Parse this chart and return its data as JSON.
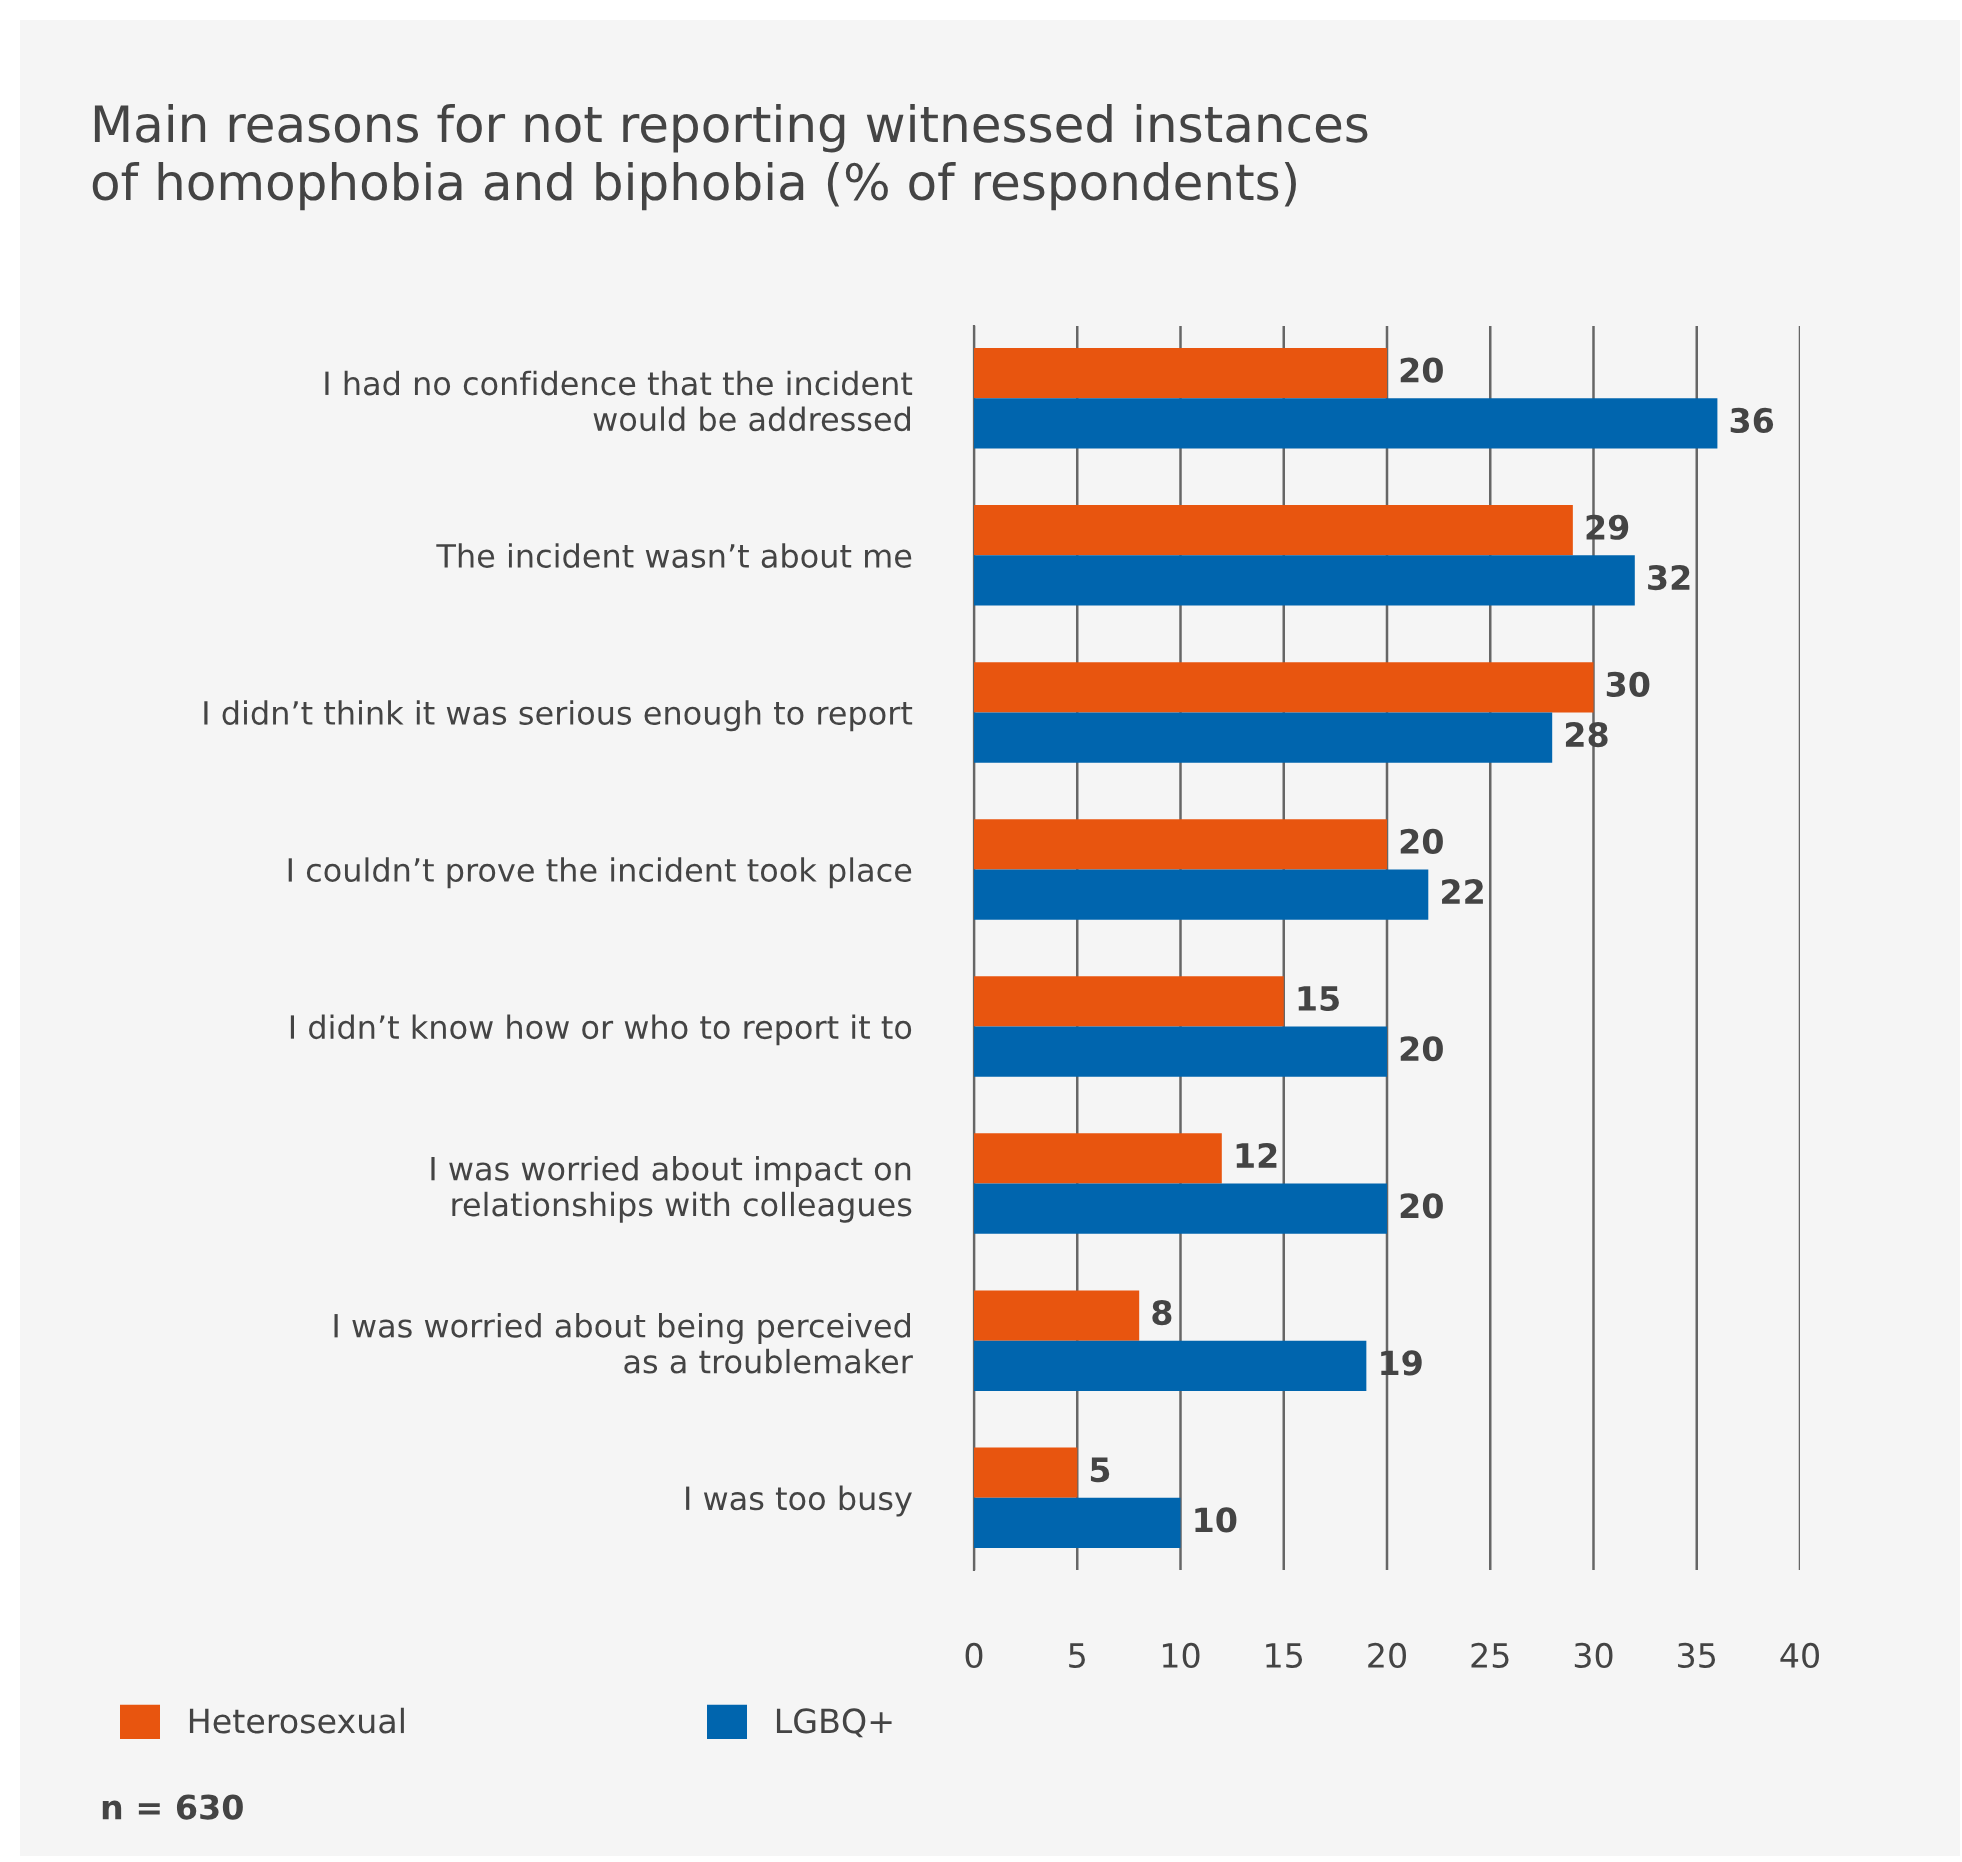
{
  "chart_data": {
    "type": "bar",
    "orientation": "horizontal",
    "title": "Main reasons for not reporting witnessed instances\nof homophobia and biphobia (% of respondents)",
    "categories": [
      "I had no confidence that the incident\nwould be addressed",
      "The incident wasn’t about me",
      "I didn’t think it was serious enough to report",
      "I couldn’t prove the incident took place",
      "I didn’t know how or who to report it to",
      "I was worried about impact on\nrelationships with colleagues",
      "I was worried about being perceived\nas a troublemaker",
      "I was too busy"
    ],
    "series": [
      {
        "name": "Heterosexual",
        "color": "#e8550f",
        "values": [
          20,
          29,
          30,
          20,
          15,
          12,
          8,
          5
        ]
      },
      {
        "name": "LGBQ+",
        "color": "#0065ae",
        "values": [
          36,
          32,
          28,
          22,
          20,
          20,
          19,
          10
        ]
      }
    ],
    "xlim": [
      0,
      40
    ],
    "xticks": [
      0,
      5,
      10,
      15,
      20,
      25,
      30,
      35,
      40
    ],
    "grid": "x",
    "legend": "bottom left",
    "data_labels": true,
    "annotations": [
      "n = 630"
    ]
  }
}
